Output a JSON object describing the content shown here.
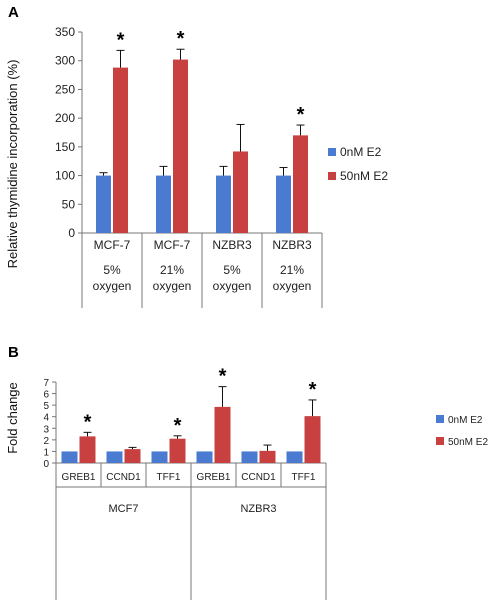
{
  "chart_data": [
    {
      "panel_label": "A",
      "type": "bar",
      "ylabel": "Relative thymidine incorporation (%)",
      "ylim": [
        0,
        350
      ],
      "yticks": [
        0,
        50,
        100,
        150,
        200,
        250,
        300,
        350
      ],
      "categories": [
        {
          "line1": "MCF-7",
          "line2": "5%",
          "line3": "oxygen"
        },
        {
          "line1": "MCF-7",
          "line2": "21%",
          "line3": "oxygen"
        },
        {
          "line1": "NZBR3",
          "line2": "5%",
          "line3": "oxygen"
        },
        {
          "line1": "NZBR3",
          "line2": "21%",
          "line3": "oxygen"
        }
      ],
      "series": [
        {
          "name": "0nM E2",
          "color": "#4a7bd0",
          "values": [
            100,
            100,
            100,
            100
          ],
          "errors": [
            5,
            16,
            16,
            14
          ]
        },
        {
          "name": "50nM E2",
          "color": "#c94040",
          "values": [
            288,
            302,
            142,
            170
          ],
          "errors": [
            30,
            18,
            47,
            18
          ]
        }
      ],
      "significance": [
        "*",
        "*",
        "",
        "*"
      ],
      "legend_position": "right"
    },
    {
      "panel_label": "B",
      "type": "bar",
      "ylabel": "Fold change",
      "ylim": [
        0,
        7
      ],
      "yticks": [
        0,
        1,
        2,
        3,
        4,
        5,
        6,
        7
      ],
      "categories": [
        "GREB1",
        "CCND1",
        "TFF1",
        "GREB1",
        "CCND1",
        "TFF1"
      ],
      "groups": [
        {
          "label": "MCF7",
          "span": [
            0,
            2
          ]
        },
        {
          "label": "NZBR3",
          "span": [
            3,
            5
          ]
        }
      ],
      "series": [
        {
          "name": "0nM E2",
          "color": "#4a7bd0",
          "values": [
            1,
            1,
            1,
            1,
            1,
            1
          ],
          "errors": [
            0,
            0,
            0,
            0,
            0,
            0
          ]
        },
        {
          "name": "50nM E2",
          "color": "#c94040",
          "values": [
            2.3,
            1.2,
            2.1,
            4.85,
            1.05,
            4.05
          ],
          "errors": [
            0.35,
            0.15,
            0.25,
            1.75,
            0.5,
            1.4
          ]
        }
      ],
      "significance": [
        "*",
        "",
        "*",
        "*",
        "",
        "*"
      ],
      "legend_position": "right"
    }
  ]
}
